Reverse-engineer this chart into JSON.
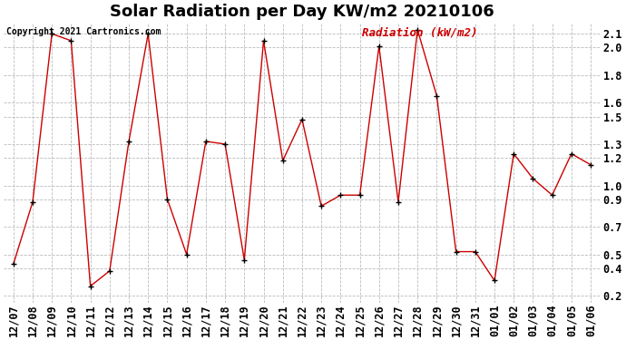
{
  "title": "Solar Radiation per Day KW/m2 20210106",
  "copyright": "Copyright 2021 Cartronics.com",
  "ylabel": "Radiation (kW/m2)",
  "dates": [
    "12/07",
    "12/08",
    "12/09",
    "12/10",
    "12/11",
    "12/12",
    "12/13",
    "12/14",
    "12/15",
    "12/16",
    "12/17",
    "12/18",
    "12/19",
    "12/20",
    "12/21",
    "12/22",
    "12/23",
    "12/24",
    "12/25",
    "12/26",
    "12/27",
    "12/28",
    "12/29",
    "12/30",
    "12/31",
    "01/01",
    "01/02",
    "01/03",
    "01/04",
    "01/05",
    "01/06"
  ],
  "values": [
    0.43,
    0.88,
    2.1,
    2.05,
    0.27,
    0.38,
    1.32,
    2.1,
    0.9,
    0.5,
    1.32,
    1.3,
    0.46,
    2.05,
    1.18,
    1.48,
    0.85,
    0.93,
    0.93,
    2.01,
    0.88,
    2.13,
    1.65,
    0.52,
    0.52,
    0.31,
    1.23,
    1.05,
    0.93,
    1.23,
    1.15
  ],
  "line_color": "#cc0000",
  "marker_color": "#000000",
  "grid_color": "#bbbbbb",
  "bg_color": "#ffffff",
  "ylim_min": 0.15,
  "ylim_max": 2.18,
  "yticks": [
    0.2,
    0.4,
    0.5,
    0.7,
    0.9,
    1.0,
    1.2,
    1.3,
    1.5,
    1.6,
    1.8,
    2.0,
    2.1
  ],
  "title_fontsize": 13,
  "copyright_fontsize": 7,
  "ylabel_fontsize": 9,
  "tick_fontsize": 8.5
}
